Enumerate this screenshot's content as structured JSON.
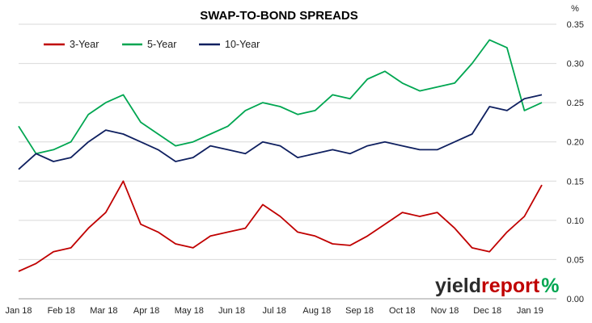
{
  "chart_data": {
    "type": "line",
    "title": "SWAP-TO-BOND SPREADS",
    "ylabel": "%",
    "xlabel": "",
    "ylim": [
      0,
      0.35
    ],
    "y_ticks": [
      "0.00",
      "0.05",
      "0.10",
      "0.15",
      "0.20",
      "0.25",
      "0.30",
      "0.35"
    ],
    "x_ticks": [
      "Jan 18",
      "Feb 18",
      "Mar 18",
      "Apr 18",
      "May 18",
      "Jun 18",
      "Jul 18",
      "Aug 18",
      "Sep 18",
      "Oct 18",
      "Nov 18",
      "Dec 18",
      "Jan 19"
    ],
    "grid": "horizontal",
    "legend_position": "top-left",
    "x": [
      "Jan 18",
      "Jan 18",
      "Feb 18",
      "Feb 18",
      "Mar 18",
      "Mar 18",
      "Mar 18",
      "Apr 18",
      "Apr 18",
      "May 18",
      "May 18",
      "Jun 18",
      "Jun 18",
      "Jul 18",
      "Jul 18",
      "Jul 18",
      "Aug 18",
      "Aug 18",
      "Sep 18",
      "Sep 18",
      "Oct 18",
      "Oct 18",
      "Oct 18",
      "Nov 18",
      "Nov 18",
      "Dec 18",
      "Dec 18",
      "Dec 18",
      "Jan 19",
      "Jan 19",
      "Jan 19"
    ],
    "series": [
      {
        "name": "3-Year",
        "color": "#c00000",
        "values": [
          0.035,
          0.045,
          0.06,
          0.065,
          0.09,
          0.11,
          0.15,
          0.095,
          0.085,
          0.07,
          0.065,
          0.08,
          0.085,
          0.09,
          0.12,
          0.105,
          0.085,
          0.08,
          0.07,
          0.068,
          0.08,
          0.095,
          0.11,
          0.105,
          0.11,
          0.09,
          0.065,
          0.06,
          0.085,
          0.105,
          0.145
        ]
      },
      {
        "name": "5-Year",
        "color": "#00a651",
        "values": [
          0.22,
          0.185,
          0.19,
          0.2,
          0.235,
          0.25,
          0.26,
          0.225,
          0.21,
          0.195,
          0.2,
          0.21,
          0.22,
          0.24,
          0.25,
          0.245,
          0.235,
          0.24,
          0.26,
          0.255,
          0.28,
          0.29,
          0.275,
          0.265,
          0.27,
          0.275,
          0.3,
          0.33,
          0.32,
          0.24,
          0.25
        ]
      },
      {
        "name": "10-Year",
        "color": "#0f2060",
        "values": [
          0.165,
          0.185,
          0.175,
          0.18,
          0.2,
          0.215,
          0.21,
          0.2,
          0.19,
          0.175,
          0.18,
          0.195,
          0.19,
          0.185,
          0.2,
          0.195,
          0.18,
          0.185,
          0.19,
          0.185,
          0.195,
          0.2,
          0.195,
          0.19,
          0.19,
          0.2,
          0.21,
          0.245,
          0.24,
          0.255,
          0.26
        ]
      }
    ]
  },
  "branding": {
    "text_part1": "yield",
    "text_part2": "report",
    "text_part3": "%",
    "color_dark": "#2b2b2b",
    "color_red": "#c00000",
    "color_green": "#00a651"
  }
}
